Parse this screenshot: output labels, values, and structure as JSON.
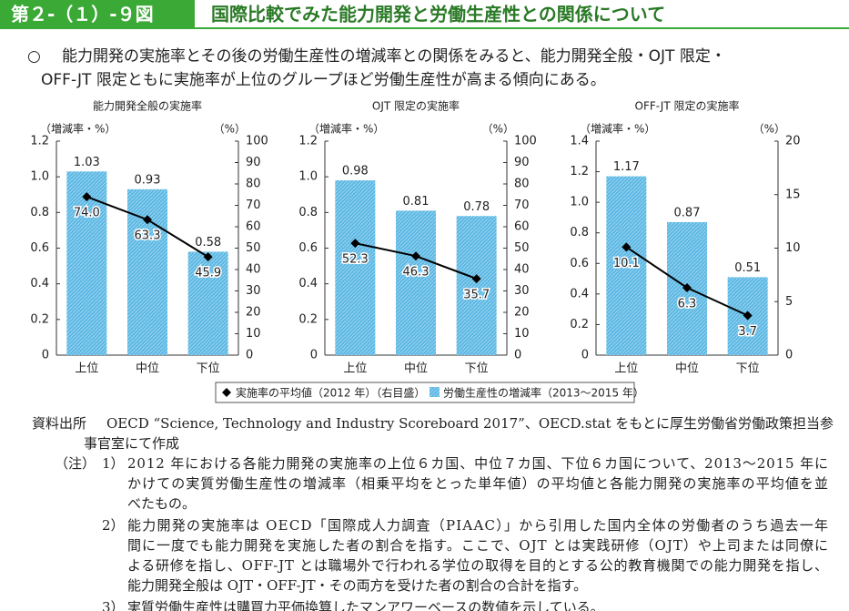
{
  "header": {
    "figure_no": "第２-（１）-９図",
    "title": "国際比較でみた能力開発と労働生産性との関係について"
  },
  "summary": {
    "bullet": "○",
    "lines": [
      "能力開発の実施率とその後の労働生産性の増減率との関係をみると、能力開発全般・OJT 限定・",
      "OFF-JT 限定ともに実施率が上位のグループほど労働生産性が高まる傾向にある。"
    ]
  },
  "chart_data": [
    {
      "type": "combo",
      "title": "能力開発全般の実施率",
      "y_label": "（増減率・%）",
      "y2_label": "（%）",
      "categories": [
        "上位",
        "中位",
        "下位"
      ],
      "series": [
        {
          "name": "実施率の平均値（2012 年）（右目盛）",
          "type": "line",
          "axis": "y2",
          "color": "#000000",
          "values": [
            74.0,
            63.3,
            45.9
          ],
          "value_labels": [
            "74.0",
            "63.3",
            "45.9"
          ]
        },
        {
          "name": "労働生産性の増減率（2013～2015 年）",
          "type": "bar",
          "color": "#5cb8e4",
          "values": [
            1.03,
            0.93,
            0.58
          ]
        }
      ],
      "ylim": [
        0,
        1.2
      ],
      "yticks": [
        0,
        0.2,
        0.4,
        0.6,
        0.8,
        {
          "value": 1,
          "label": "1.0"
        },
        1.2
      ],
      "y2lim": [
        0,
        100
      ],
      "y2ticks": [
        0,
        10,
        20,
        30,
        40,
        50,
        60,
        70,
        80,
        90,
        100
      ]
    },
    {
      "type": "combo",
      "title": "OJT 限定の実施率",
      "y_label": "（増減率・%）",
      "y2_label": "（%）",
      "categories": [
        "上位",
        "中位",
        "下位"
      ],
      "series": [
        {
          "type": "line",
          "axis": "y2",
          "color": "#000000",
          "values": [
            52.3,
            46.3,
            35.7
          ]
        },
        {
          "type": "bar",
          "color": "#5cb8e4",
          "values": [
            0.98,
            0.81,
            0.78
          ]
        }
      ],
      "ylim": [
        0,
        1.2
      ],
      "yticks": [
        0,
        0.2,
        0.4,
        0.6,
        0.8,
        {
          "value": 1,
          "label": "1.0"
        },
        1.2
      ],
      "y2lim": [
        0,
        100
      ],
      "y2ticks": [
        0,
        10,
        20,
        30,
        40,
        50,
        60,
        70,
        80,
        90,
        100
      ]
    },
    {
      "type": "combo",
      "title": "OFF-JT 限定の実施率",
      "y_label": "（増減率・%）",
      "y2_label": "（%）",
      "categories": [
        "上位",
        "中位",
        "下位"
      ],
      "series": [
        {
          "type": "line",
          "axis": "y2",
          "color": "#000000",
          "values": [
            10.1,
            6.3,
            3.7
          ]
        },
        {
          "type": "bar",
          "color": "#5cb8e4",
          "values": [
            1.17,
            0.87,
            0.51
          ]
        }
      ],
      "ylim": [
        0,
        1.4
      ],
      "yticks": [
        0,
        0.2,
        0.4,
        0.6,
        0.8,
        {
          "value": 1,
          "label": "1.0"
        },
        1.2,
        1.4
      ],
      "y2lim": [
        0,
        20
      ],
      "y2ticks": [
        0,
        5,
        10,
        15,
        20
      ]
    }
  ],
  "source": {
    "label": "資料出所",
    "lines": [
      "OECD “Science, Technology and Industry Scoreboard 2017”、OECD.stat をもとに厚生労働省労働政策担当参",
      "事官室にて作成"
    ]
  },
  "notes": {
    "label": "（注）",
    "items": [
      {
        "number": "1）",
        "lines": [
          "2012 年における各能力開発の実施率の上位６カ国、中位７カ国、下位６カ国について、2013～2015 年に",
          "かけての実質労働生産性の増減率（相乗平均をとった単年値）の平均値と各能力開発の実施率の平均値を並",
          "べたもの。"
        ]
      },
      {
        "number": "2）",
        "lines": [
          "能力開発の実施率は OECD「国際成人力調査（PIAAC）」から引用した国内全体の労働者のうち過去一年",
          "間に一度でも能力開発を実施した者の割合を指す。ここで、OJT とは実践研修（OJT）や上司または同僚に",
          "よる研修を指し、OFF-JT とは職場外で行われる学位の取得を目的とする公的教育機関での能力開発を指し、",
          "能力開発全般は OJT・OFF-JT・その両方を受けた者の割合の合計を指す。"
        ]
      },
      {
        "number": "3）",
        "lines": [
          "実質労働生産性は購買力平価換算したマンアワーベースの数値を示している。"
        ]
      }
    ]
  }
}
